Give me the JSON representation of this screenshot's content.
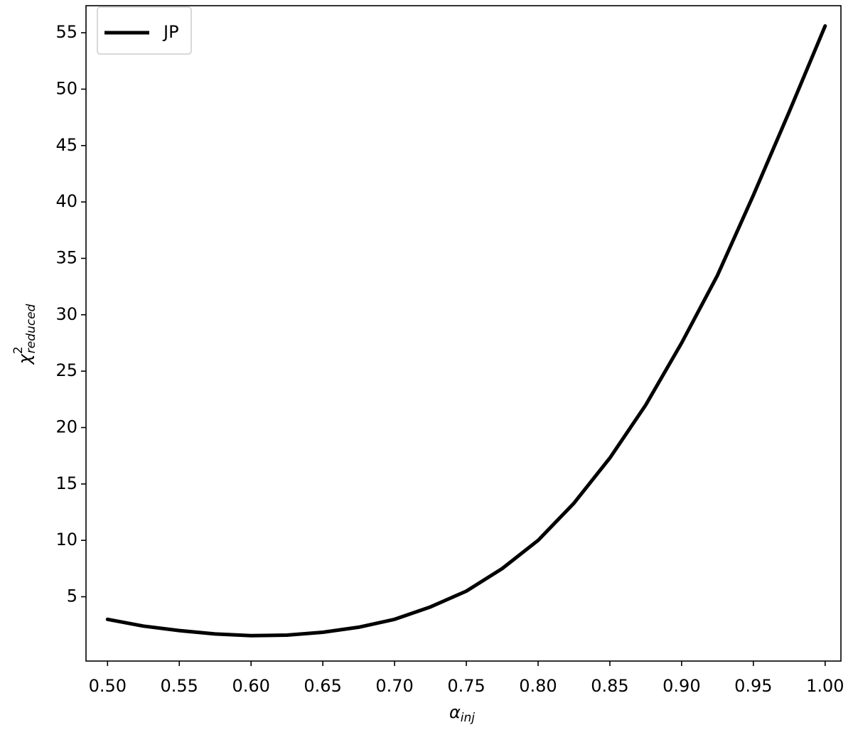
{
  "chart_data": {
    "type": "line",
    "xlabel": {
      "base": "α",
      "sub": "inj"
    },
    "ylabel": {
      "base": "χ",
      "sup": "2",
      "sub": "reduced"
    },
    "x": [
      0.5,
      0.525,
      0.55,
      0.575,
      0.6,
      0.625,
      0.65,
      0.675,
      0.7,
      0.725,
      0.75,
      0.775,
      0.8,
      0.825,
      0.85,
      0.875,
      0.9,
      0.925,
      0.95,
      0.975,
      1.0
    ],
    "series": [
      {
        "name": "JP",
        "color": "#000000",
        "values": [
          3.0,
          2.4,
          2.0,
          1.7,
          1.55,
          1.6,
          1.85,
          2.3,
          3.0,
          4.1,
          5.5,
          7.5,
          10.0,
          13.3,
          17.3,
          22.0,
          27.5,
          33.5,
          40.6,
          48.0,
          55.6
        ]
      }
    ],
    "xlim": [
      0.485,
      1.011
    ],
    "ylim": [
      -0.7,
      57.4
    ],
    "xticks": [
      {
        "value": 0.5,
        "label": "0.50"
      },
      {
        "value": 0.55,
        "label": "0.55"
      },
      {
        "value": 0.6,
        "label": "0.60"
      },
      {
        "value": 0.65,
        "label": "0.65"
      },
      {
        "value": 0.7,
        "label": "0.70"
      },
      {
        "value": 0.75,
        "label": "0.75"
      },
      {
        "value": 0.8,
        "label": "0.80"
      },
      {
        "value": 0.85,
        "label": "0.85"
      },
      {
        "value": 0.9,
        "label": "0.90"
      },
      {
        "value": 0.95,
        "label": "0.95"
      },
      {
        "value": 1.0,
        "label": "1.00"
      }
    ],
    "yticks": [
      5,
      10,
      15,
      20,
      25,
      30,
      35,
      40,
      45,
      50,
      55
    ],
    "legend": "upper left",
    "grid": false
  }
}
